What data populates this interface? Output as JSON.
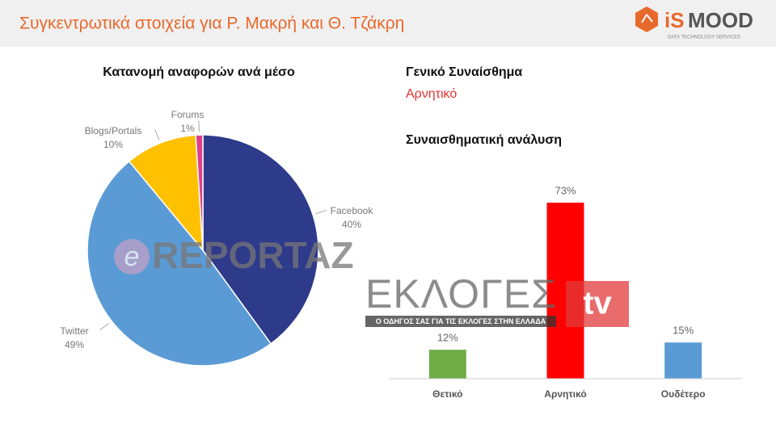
{
  "header": {
    "title": "Συγκεντρωτικά στοιχεία για Ρ. Μακρή και Θ. Τζάκρη",
    "logo_a": "iS",
    "logo_b": "MOOD",
    "logo_tagline": "DATA TECHNOLOGY SERVICES"
  },
  "sentiment": {
    "heading": "Γενικό Συναίσθημα",
    "value": "Αρνητικό"
  },
  "watermarks": {
    "site_a": "e",
    "site_b": "REPORTAZ",
    "brand": "ΕΚΛΟΓΕΣ",
    "brand_tv": "tv",
    "brand_tagline": "Ο ΟΔΗΓΟΣ ΣΑΣ ΓΙΑ ΤΙΣ ΕΚΛΟΓΕΣ ΣΤΗΝ ΕΛΛΑΔΑ"
  },
  "chart_data": [
    {
      "type": "pie",
      "title": "Κατανομή αναφορών ανά μέσο",
      "categories": [
        "Facebook",
        "Twitter",
        "Blogs/Portals",
        "Forums"
      ],
      "values": [
        40,
        49,
        10,
        1
      ],
      "value_labels": [
        "40%",
        "49%",
        "10%",
        "1%"
      ],
      "colors": [
        "#2e3a8a",
        "#5b9bd5",
        "#ffc000",
        "#e0408a"
      ]
    },
    {
      "type": "bar",
      "title": "Συναισθηματική ανάλυση",
      "categories": [
        "Θετικό",
        "Αρνητικό",
        "Ουδέτερο"
      ],
      "values": [
        12,
        73,
        15
      ],
      "value_labels": [
        "12%",
        "73%",
        "15%"
      ],
      "colors": [
        "#70ad47",
        "#ff0000",
        "#5b9bd5"
      ]
    }
  ]
}
